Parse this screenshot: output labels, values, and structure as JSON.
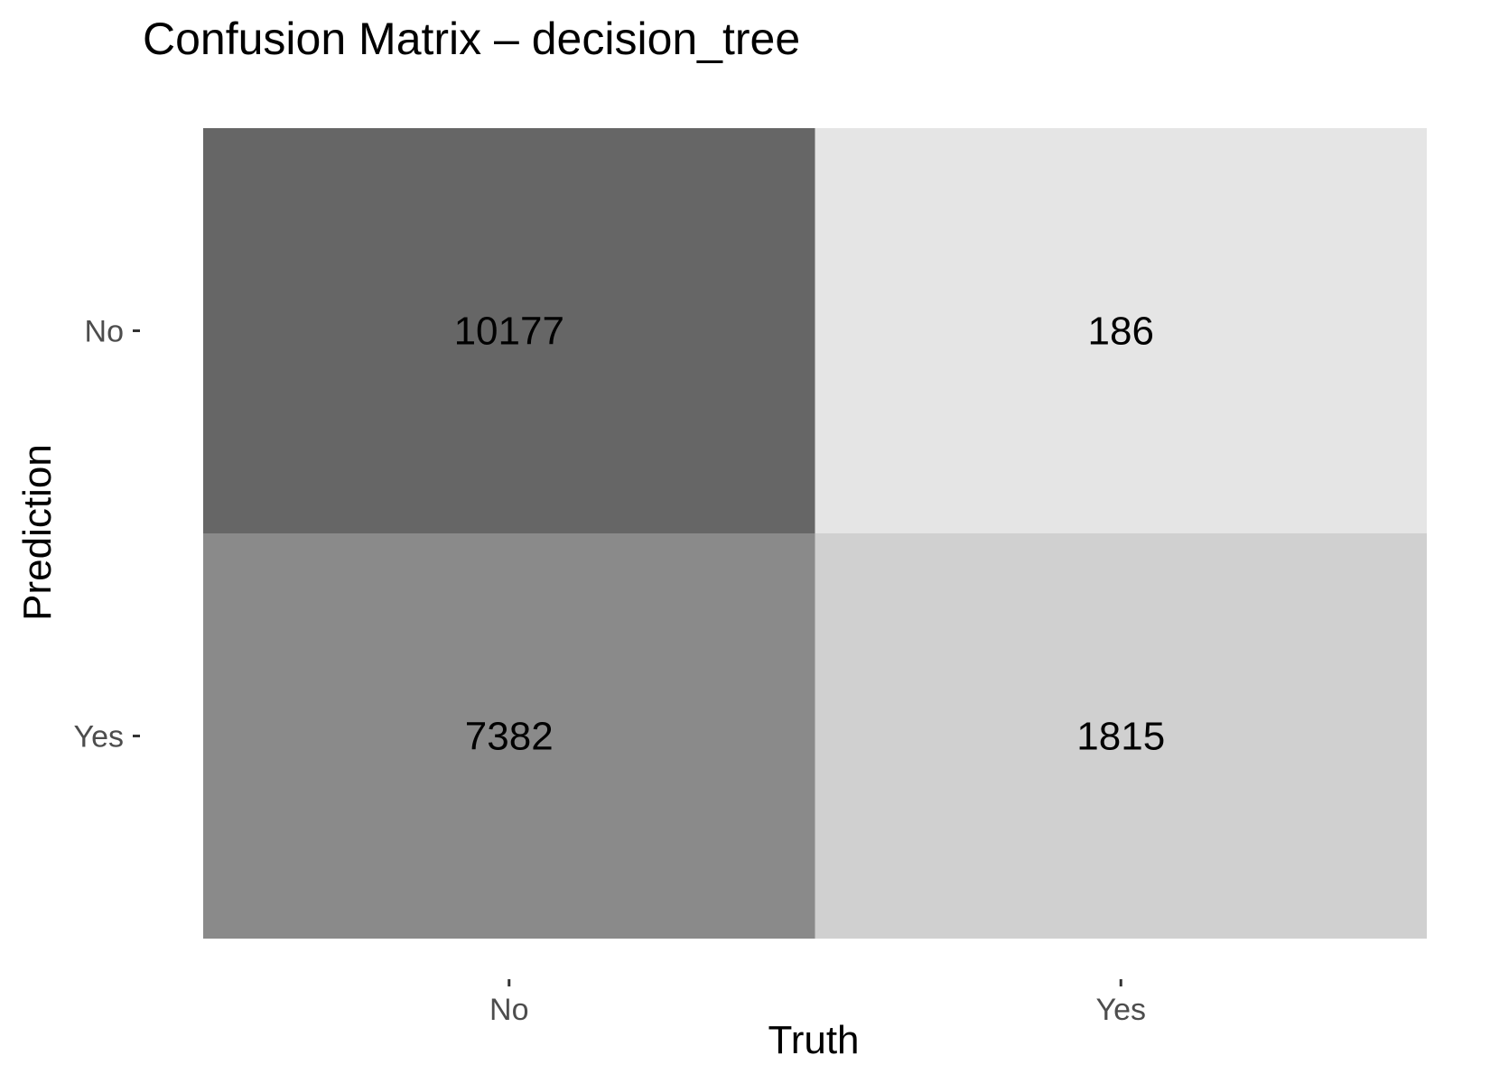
{
  "chart_data": {
    "type": "heatmap",
    "title": "Confusion Matrix – decision_tree",
    "xlabel": "Truth",
    "ylabel": "Prediction",
    "x_categories": [
      "No",
      "Yes"
    ],
    "y_categories": [
      "No",
      "Yes"
    ],
    "cells": [
      {
        "prediction": "No",
        "truth": "No",
        "value": 10177
      },
      {
        "prediction": "No",
        "truth": "Yes",
        "value": 186
      },
      {
        "prediction": "Yes",
        "truth": "No",
        "value": 7382
      },
      {
        "prediction": "Yes",
        "truth": "Yes",
        "value": 1815
      }
    ],
    "color_scale": {
      "low": "#e5e5e5",
      "high": "#666666"
    },
    "grid": false,
    "legend": "none"
  }
}
